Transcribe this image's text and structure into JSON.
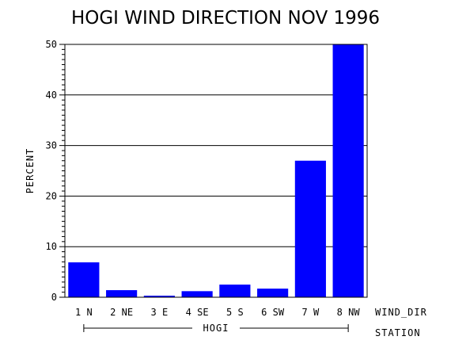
{
  "chart_data": {
    "type": "bar",
    "title": "HOGI WIND DIRECTION NOV 1996",
    "ylabel": "PERCENT",
    "xlabel": "WIND_DIR",
    "group_axis_label": "STATION",
    "group_label": "HOGI",
    "categories": [
      "1 N",
      "2 NE",
      "3 E",
      "4 SE",
      "5 S",
      "6 SW",
      "7 W",
      "8 NW"
    ],
    "values": [
      6.9,
      1.4,
      0.3,
      1.2,
      2.5,
      1.7,
      27.0,
      50.0
    ],
    "ylim": [
      0,
      50
    ],
    "yticks": [
      0,
      10,
      20,
      30,
      40,
      50
    ],
    "grid": true,
    "bar_color": "#0000ff",
    "legend": "none"
  }
}
